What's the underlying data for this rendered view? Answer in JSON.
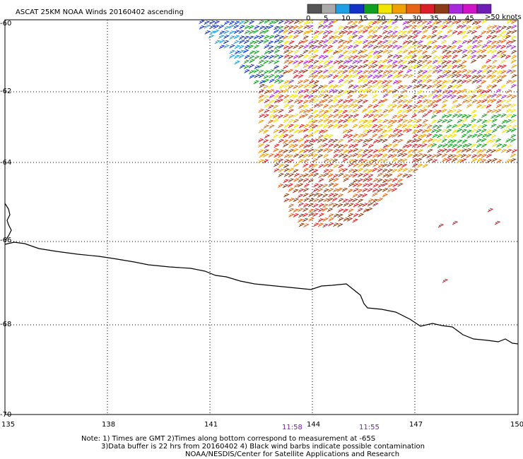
{
  "title": "ASCAT 25KM NOAA Winds 20160402 ascending",
  "legend": {
    "unit_label": ">50 knots",
    "ticks": [
      "0",
      "5",
      "10",
      "15",
      "20",
      "25",
      "30",
      "35",
      "40",
      "45"
    ],
    "colors": [
      "#555555",
      "#aaaaaa",
      "#1ea0e6",
      "#1432c8",
      "#10a020",
      "#f0e600",
      "#f0a000",
      "#e66414",
      "#dc1e28",
      "#8c3c14",
      "#aa28dc",
      "#d214c8",
      "#6e1eb4"
    ]
  },
  "axes": {
    "lon_labels": [
      "135",
      "138",
      "141",
      "144",
      "147",
      "150"
    ],
    "lat_labels": [
      "-60",
      "-62",
      "-64",
      "-66",
      "-68",
      "-70"
    ]
  },
  "times": [
    "11:58",
    "11:55"
  ],
  "notes": {
    "line1": "Note: 1) Times are GMT 2)Times along bottom correspond to measurement at -65S",
    "line2": "3)Data buffer is 22 hrs from 20160402 4) Black wind barbs indicate possible contamination",
    "line3": "NOAA/NESDIS/Center for Satellite Applications and Research"
  },
  "chart_data": {
    "type": "wind-barb-map",
    "lon_range": [
      135,
      150
    ],
    "lat_range": [
      -70,
      -60
    ],
    "barb_speed_classes_knots": [
      0,
      5,
      10,
      15,
      20,
      25,
      30,
      35,
      40,
      45,
      50
    ]
  }
}
